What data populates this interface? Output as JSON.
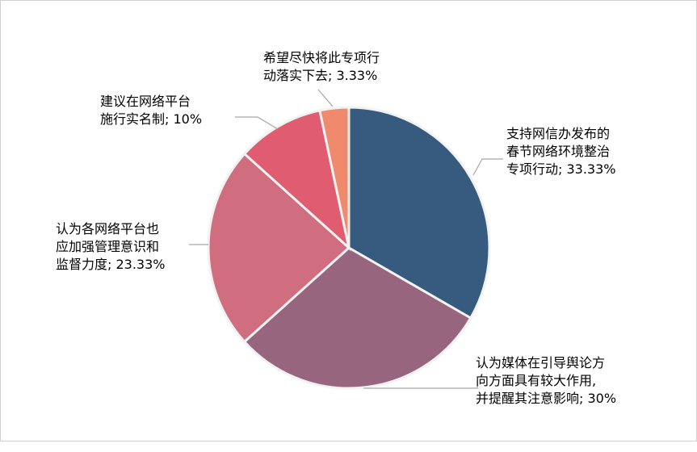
{
  "chart_data": {
    "type": "pie",
    "title": "",
    "slices": [
      {
        "label": [
          "支持网信办发布的",
          "春节网络环境整治",
          "专项行动; 33.33%"
        ],
        "value": 33.33,
        "color": "#375A7F"
      },
      {
        "label": [
          "认为媒体在引导舆论方",
          "向方面具有较大作用,",
          "并提醒其注意影响; 30%"
        ],
        "value": 30,
        "color": "#98657F"
      },
      {
        "label": [
          "认为各网络平台也",
          "应加强管理意识和",
          "监督力度; 23.33%"
        ],
        "value": 23.33,
        "color": "#D06D7E"
      },
      {
        "label": [
          "建议在网络平台",
          "施行实名制; 10%"
        ],
        "value": 10,
        "color": "#E05C70"
      },
      {
        "label": [
          "希望尽快将此专项行",
          "动落实下去; 3.33%"
        ],
        "value": 3.33,
        "color": "#F08A6C"
      }
    ]
  }
}
